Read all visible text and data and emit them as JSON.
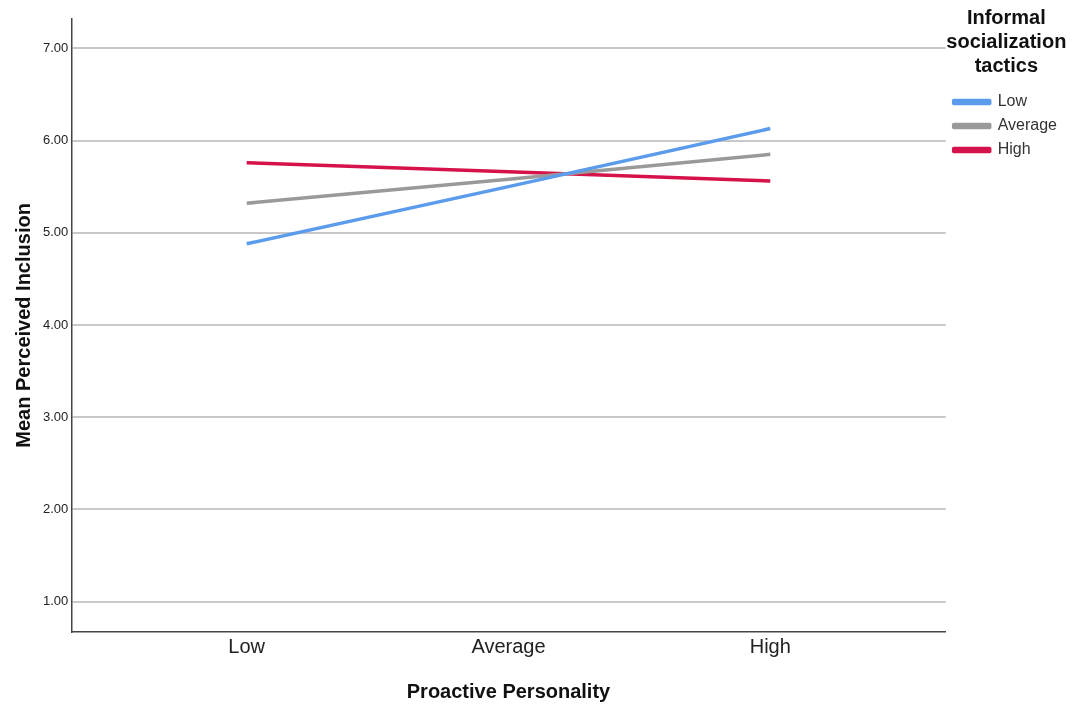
{
  "chart_data": {
    "type": "line",
    "xlabel": "Proactive Personality",
    "ylabel": "Mean Perceived Inclusion",
    "legend_title": "Informal socialization tactics",
    "categories": [
      "Low",
      "Average",
      "High"
    ],
    "series": [
      {
        "name": "Low",
        "color": "#5b9bec",
        "values": [
          4.88,
          5.5,
          6.13
        ]
      },
      {
        "name": "Average",
        "color": "#999999",
        "values": [
          5.32,
          5.58,
          5.85
        ]
      },
      {
        "name": "High",
        "color": "#d5134a",
        "values": [
          5.76,
          5.66,
          5.56
        ]
      }
    ],
    "ylim": [
      0.67,
      7.32
    ],
    "yticks": [
      {
        "value": 1,
        "label": "1.00"
      },
      {
        "value": 2,
        "label": "2.00"
      },
      {
        "value": 3,
        "label": "3.00"
      },
      {
        "value": 4,
        "label": "4.00"
      },
      {
        "value": 5,
        "label": "5.00"
      },
      {
        "value": 6,
        "label": "6.00"
      },
      {
        "value": 7,
        "label": "7.00"
      }
    ],
    "grid": "y",
    "legend": "top right",
    "marker": "none",
    "line_style": "solid"
  }
}
